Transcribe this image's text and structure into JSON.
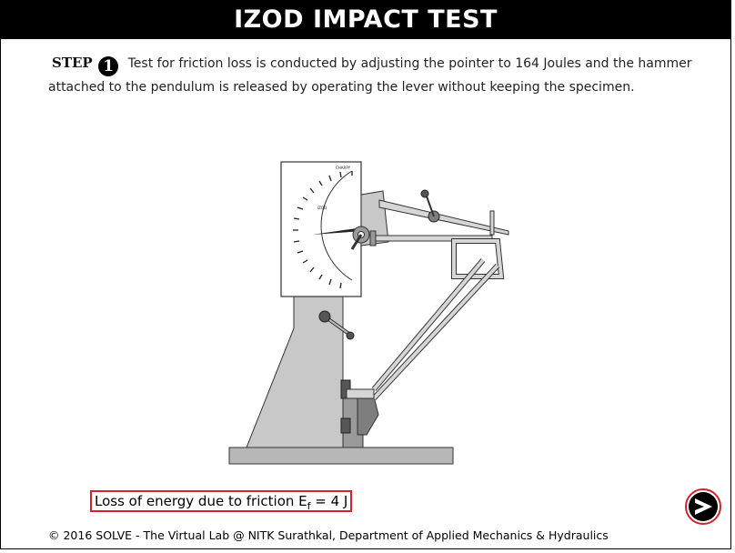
{
  "header": {
    "title": "IZOD IMPACT TEST"
  },
  "step": {
    "label": "STEP",
    "number": "1",
    "text": "Test for friction loss is conducted by adjusting the pointer to 164 Joules and the hammer attached to the pendulum is released by operating the lever without keeping the specimen."
  },
  "dial": {
    "top_label": "CHARPY",
    "inner_label": "IZOD"
  },
  "result": {
    "prefix": "Loss of energy due to friction E",
    "subscript": "f",
    "suffix": " = 4 J"
  },
  "footer": {
    "text": "© 2016 SOLVE - The Virtual Lab @ NITK Surathkal, Department of Applied Mechanics & Hydraulics"
  },
  "navigation": {
    "next_icon": "next-arrow-icon"
  },
  "colors": {
    "title_bg": "#000000",
    "result_border": "#d1232a",
    "machine_gray": "#c8c8c8",
    "next_ring": "#d1232a"
  }
}
